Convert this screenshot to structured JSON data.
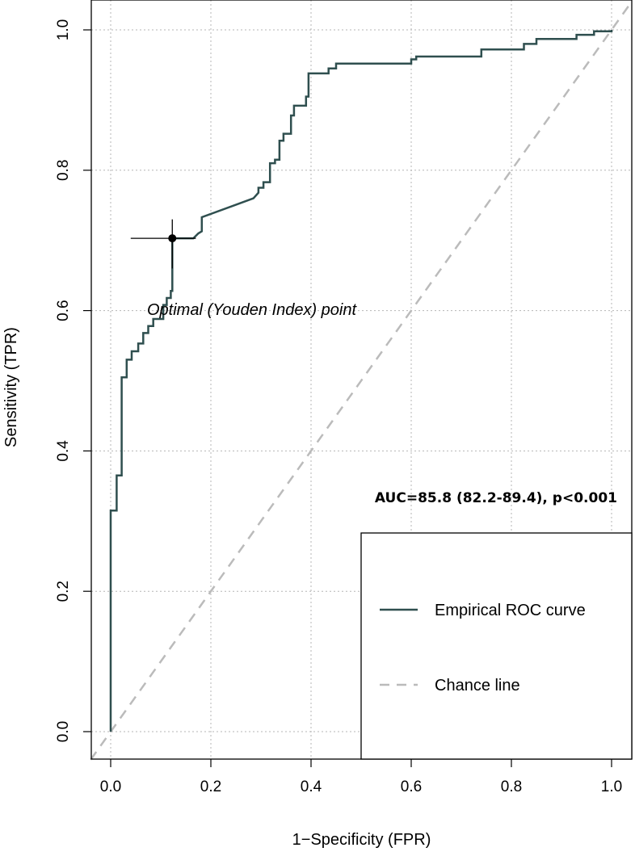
{
  "chart_data": {
    "type": "line",
    "title": "",
    "xlabel": "1−Specificity (FPR)",
    "ylabel": "Sensitivity (TPR)",
    "xlim": [
      0,
      1
    ],
    "ylim": [
      0,
      1
    ],
    "x_ticks": [
      "0.0",
      "0.2",
      "0.4",
      "0.6",
      "0.8",
      "1.0"
    ],
    "y_ticks": [
      "0.0",
      "0.2",
      "0.4",
      "0.6",
      "0.8",
      "1.0"
    ],
    "grid": true,
    "series": [
      {
        "name": "Empirical ROC curve",
        "color": "#2f4f4f",
        "style": "solid",
        "points": [
          [
            0,
            0
          ],
          [
            0,
            0.315
          ],
          [
            0.012,
            0.315
          ],
          [
            0.012,
            0.365
          ],
          [
            0.022,
            0.365
          ],
          [
            0.022,
            0.505
          ],
          [
            0.032,
            0.505
          ],
          [
            0.032,
            0.53
          ],
          [
            0.042,
            0.53
          ],
          [
            0.042,
            0.542
          ],
          [
            0.055,
            0.542
          ],
          [
            0.055,
            0.553
          ],
          [
            0.065,
            0.553
          ],
          [
            0.065,
            0.568
          ],
          [
            0.075,
            0.568
          ],
          [
            0.075,
            0.578
          ],
          [
            0.085,
            0.578
          ],
          [
            0.085,
            0.588
          ],
          [
            0.105,
            0.588
          ],
          [
            0.105,
            0.608
          ],
          [
            0.112,
            0.608
          ],
          [
            0.112,
            0.618
          ],
          [
            0.12,
            0.618
          ],
          [
            0.12,
            0.628
          ],
          [
            0.123,
            0.628
          ],
          [
            0.123,
            0.703
          ],
          [
            0.165,
            0.703
          ],
          [
            0.175,
            0.71
          ],
          [
            0.182,
            0.713
          ],
          [
            0.182,
            0.733
          ],
          [
            0.285,
            0.76
          ],
          [
            0.295,
            0.768
          ],
          [
            0.295,
            0.775
          ],
          [
            0.305,
            0.775
          ],
          [
            0.305,
            0.783
          ],
          [
            0.318,
            0.783
          ],
          [
            0.318,
            0.81
          ],
          [
            0.328,
            0.81
          ],
          [
            0.328,
            0.815
          ],
          [
            0.337,
            0.815
          ],
          [
            0.337,
            0.842
          ],
          [
            0.345,
            0.842
          ],
          [
            0.345,
            0.852
          ],
          [
            0.36,
            0.852
          ],
          [
            0.36,
            0.878
          ],
          [
            0.366,
            0.878
          ],
          [
            0.366,
            0.892
          ],
          [
            0.39,
            0.892
          ],
          [
            0.39,
            0.905
          ],
          [
            0.395,
            0.905
          ],
          [
            0.395,
            0.938
          ],
          [
            0.435,
            0.938
          ],
          [
            0.435,
            0.945
          ],
          [
            0.45,
            0.945
          ],
          [
            0.45,
            0.952
          ],
          [
            0.6,
            0.952
          ],
          [
            0.6,
            0.958
          ],
          [
            0.61,
            0.958
          ],
          [
            0.61,
            0.962
          ],
          [
            0.74,
            0.962
          ],
          [
            0.74,
            0.972
          ],
          [
            0.825,
            0.972
          ],
          [
            0.825,
            0.98
          ],
          [
            0.85,
            0.98
          ],
          [
            0.85,
            0.987
          ],
          [
            0.93,
            0.987
          ],
          [
            0.93,
            0.993
          ],
          [
            0.965,
            0.993
          ],
          [
            0.965,
            0.998
          ],
          [
            1,
            0.998
          ],
          [
            1,
            1
          ]
        ]
      },
      {
        "name": "Chance line",
        "color": "#bbbbbb",
        "style": "dashed",
        "points": [
          [
            -0.04,
            -0.04
          ],
          [
            1.04,
            1.04
          ]
        ]
      }
    ],
    "optimal_point": {
      "label": "Optimal (Youden Index) point",
      "fpr": 0.123,
      "tpr": 0.703,
      "fpr_ci": [
        0.04,
        0.17
      ],
      "tpr_ci": [
        0.66,
        0.73
      ]
    },
    "auc_label": "AUC=85.8 (82.2-89.4), p<0.001",
    "legend": {
      "placement": "bottom-right",
      "entries": [
        "Empirical ROC curve",
        "Chance line"
      ]
    }
  }
}
